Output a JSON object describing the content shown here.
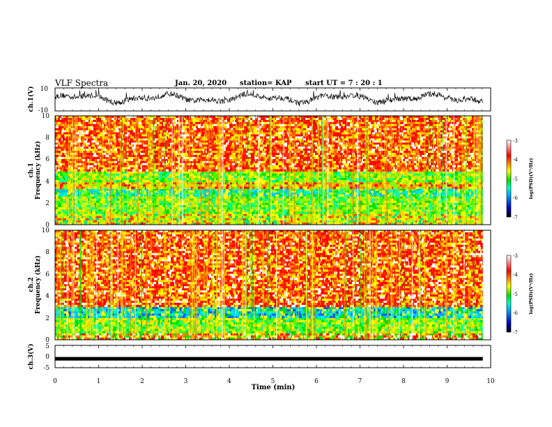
{
  "header": {
    "title": "VLF Spectra",
    "date": "Jan. 20, 2020",
    "station": "station= KAP",
    "start_time": "start UT =  7 : 20 : 1"
  },
  "colors": {
    "background": "#ffffff",
    "axis": "#000000",
    "colormap": [
      "#000000",
      "#0000cc",
      "#00a0ff",
      "#00ffc0",
      "#00e000",
      "#ffff00",
      "#ff8000",
      "#ff0000",
      "#ffffff"
    ]
  },
  "chart_data": [
    {
      "type": "line",
      "name": "ch1-waveform",
      "ylabel": "ch.1(V)",
      "ylim": [
        -10,
        10
      ],
      "yticks": [
        "10",
        "-10"
      ],
      "xlim": [
        0,
        10
      ],
      "x_end": 9.82,
      "baseline": 1.0,
      "range": [
        -6,
        8
      ]
    },
    {
      "type": "heatmap",
      "name": "ch1-spectrogram",
      "ylabel_line1": "ch.1",
      "ylabel_line2": "Frequency (kHz)",
      "ylim": [
        0,
        10
      ],
      "yticks": [
        "0",
        "2",
        "4",
        "6",
        "8",
        "10"
      ],
      "xlim": [
        0,
        10
      ],
      "x_end": 9.82,
      "bands_khz": [
        {
          "from": 0.0,
          "to": 1.0,
          "level": "yellow-green"
        },
        {
          "from": 1.0,
          "to": 2.6,
          "level": "green-yellow"
        },
        {
          "from": 2.6,
          "to": 3.3,
          "level": "cyan-green"
        },
        {
          "from": 3.3,
          "to": 3.9,
          "level": "yellow-red"
        },
        {
          "from": 3.9,
          "to": 4.9,
          "level": "green-yellow"
        },
        {
          "from": 4.9,
          "to": 10.0,
          "level": "red"
        }
      ],
      "colorbar": {
        "label": "log(PSD)(V²/Hz)",
        "range": [
          -7,
          -3
        ],
        "ticks": [
          "-3",
          "-4",
          "-5",
          "-6",
          "-7"
        ]
      }
    },
    {
      "type": "heatmap",
      "name": "ch2-spectrogram",
      "ylabel_line1": "ch.2",
      "ylabel_line2": "Frequency (kHz)",
      "ylim": [
        0,
        10
      ],
      "yticks": [
        "0",
        "2",
        "4",
        "6",
        "8",
        "10"
      ],
      "xlim": [
        0,
        10
      ],
      "x_end": 9.82,
      "bands_khz": [
        {
          "from": 0.0,
          "to": 0.6,
          "level": "red-yellow"
        },
        {
          "from": 0.6,
          "to": 2.0,
          "level": "green-yellow"
        },
        {
          "from": 2.0,
          "to": 3.0,
          "level": "cyan-blue"
        },
        {
          "from": 3.0,
          "to": 10.0,
          "level": "red"
        }
      ],
      "colorbar": {
        "label": "log(PSD)(V²/Hz)",
        "range": [
          -7,
          -3
        ],
        "ticks": [
          "-3",
          "-4",
          "-5",
          "-6",
          "-7"
        ]
      }
    },
    {
      "type": "line",
      "name": "ch3-waveform",
      "ylabel": "ch.3(V)",
      "ylim": [
        -5,
        5
      ],
      "yticks": [
        "5",
        "0",
        "-5"
      ],
      "xlim": [
        0,
        10
      ],
      "x_end": 9.82,
      "value": -1.0,
      "thickness_v": 0.4,
      "xlabel": "Time (min)",
      "xticks": [
        "0",
        "1",
        "2",
        "3",
        "4",
        "5",
        "6",
        "7",
        "8",
        "9",
        "10"
      ]
    }
  ]
}
